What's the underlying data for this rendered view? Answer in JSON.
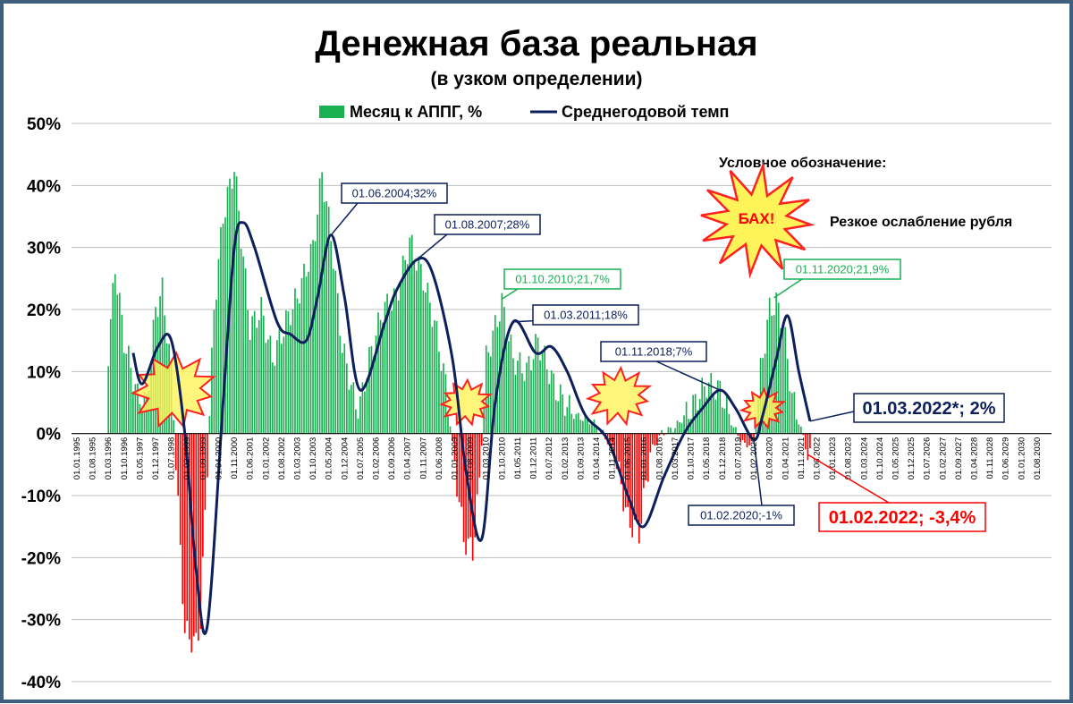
{
  "chart_data": {
    "type": "bar",
    "title": "Денежная база реальная",
    "subtitle": "(в узком определении)",
    "ylim": [
      -40,
      50
    ],
    "y_ticks": [
      "50%",
      "40%",
      "30%",
      "20%",
      "10%",
      "0%",
      "-10%",
      "-20%",
      "-30%",
      "-40%"
    ],
    "x_ticks": [
      "01.01.1995",
      "01.08.1995",
      "01.03.1996",
      "01.10.1996",
      "01.05.1997",
      "01.12.1997",
      "01.07.1998",
      "01.02.1999",
      "01.09.1999",
      "01.04.2000",
      "01.11.2000",
      "01.06.2001",
      "01.01.2002",
      "01.08.2002",
      "01.03.2003",
      "01.10.2003",
      "01.05.2004",
      "01.12.2004",
      "01.07.2005",
      "01.02.2006",
      "01.09.2006",
      "01.04.2007",
      "01.11.2007",
      "01.06.2008",
      "01.01.2009",
      "01.08.2009",
      "01.03.2010",
      "01.10.2010",
      "01.05.2011",
      "01.12.2011",
      "01.07.2012",
      "01.02.2013",
      "01.09.2013",
      "01.04.2014",
      "01.11.2014",
      "01.06.2015",
      "01.01.2016",
      "01.08.2016",
      "01.03.2017",
      "01.10.2017",
      "01.05.2018",
      "01.12.2018",
      "01.07.2019",
      "01.02.2020",
      "01.09.2020",
      "01.04.2021",
      "01.11.2021",
      "01.06.2022",
      "01.01.2023",
      "01.08.2023",
      "01.03.2024",
      "01.10.2024",
      "01.05.2025",
      "01.12.2025",
      "01.07.2026",
      "01.02.2027",
      "01.09.2027",
      "01.04.2028",
      "01.11.2028",
      "01.06.2029",
      "01.01.2030",
      "01.08.2030"
    ],
    "legend": {
      "placement": "top-center",
      "bar": "Месяц к АППГ, %",
      "line": "Среднегодовой темп"
    },
    "colors": {
      "positive": "#19b052",
      "negative": "#ff0000",
      "line": "#0d1f5c",
      "grid": "#bfbfbf",
      "burst_fill": "#fff35a",
      "burst_stroke": "#ff2020"
    },
    "bar_series": {
      "name": "Месяц к АППГ, %",
      "start": "01.03.1996",
      "keypoints": [
        [
          "01.03.1996",
          13
        ],
        [
          "01.06.1996",
          27
        ],
        [
          "01.10.1996",
          15
        ],
        [
          "01.04.1997",
          6
        ],
        [
          "01.08.1997",
          5
        ],
        [
          "01.12.1997",
          20
        ],
        [
          "01.03.1998",
          23
        ],
        [
          "01.07.1998",
          10
        ],
        [
          "01.10.1998",
          -12
        ],
        [
          "01.01.1999",
          -32
        ],
        [
          "01.06.1999",
          -34
        ],
        [
          "01.08.1999",
          -30
        ],
        [
          "01.11.1999",
          -5
        ],
        [
          "01.02.2000",
          20
        ],
        [
          "01.06.2000",
          35
        ],
        [
          "01.11.2000",
          43
        ],
        [
          "01.02.2001",
          32
        ],
        [
          "01.06.2001",
          17
        ],
        [
          "01.11.2001",
          20
        ],
        [
          "01.04.2002",
          12
        ],
        [
          "01.10.2002",
          18
        ],
        [
          "01.03.2003",
          22
        ],
        [
          "01.10.2003",
          30
        ],
        [
          "01.02.2004",
          42
        ],
        [
          "01.06.2004",
          32
        ],
        [
          "01.11.2004",
          14
        ],
        [
          "01.06.2005",
          3
        ],
        [
          "01.11.2005",
          12
        ],
        [
          "01.05.2006",
          20
        ],
        [
          "01.11.2006",
          22
        ],
        [
          "01.05.2007",
          31
        ],
        [
          "01.11.2007",
          25
        ],
        [
          "01.04.2008",
          18
        ],
        [
          "01.09.2008",
          8
        ],
        [
          "01.01.2009",
          -5
        ],
        [
          "01.05.2009",
          -17
        ],
        [
          "01.09.2009",
          -19
        ],
        [
          "01.12.2009",
          -8
        ],
        [
          "01.03.2010",
          12
        ],
        [
          "01.10.2010",
          21
        ],
        [
          "01.03.2011",
          12
        ],
        [
          "01.09.2011",
          10
        ],
        [
          "01.02.2012",
          15
        ],
        [
          "01.10.2012",
          7
        ],
        [
          "01.06.2013",
          3
        ],
        [
          "01.02.2014",
          2
        ],
        [
          "01.07.2014",
          0
        ],
        [
          "01.12.2014",
          -3
        ],
        [
          "01.06.2015",
          -14
        ],
        [
          "01.11.2015",
          -16
        ],
        [
          "01.04.2016",
          -3
        ],
        [
          "01.09.2016",
          0
        ],
        [
          "01.03.2017",
          1
        ],
        [
          "01.10.2017",
          4
        ],
        [
          "01.05.2018",
          8
        ],
        [
          "01.11.2018",
          7
        ],
        [
          "01.05.2019",
          1
        ],
        [
          "01.10.2019",
          -2
        ],
        [
          "01.02.2020",
          -1
        ],
        [
          "01.05.2020",
          10
        ],
        [
          "01.09.2020",
          20
        ],
        [
          "01.12.2020",
          21
        ],
        [
          "01.03.2021",
          18
        ],
        [
          "01.07.2021",
          6
        ],
        [
          "01.10.2021",
          2
        ],
        [
          "01.01.2022",
          -2
        ],
        [
          "01.02.2022",
          -3.4
        ],
        [
          "01.03.2022",
          -3
        ]
      ]
    },
    "line_series": {
      "name": "Среднегодовой темп",
      "points": [
        [
          "01.02.1997",
          13
        ],
        [
          "01.06.1997",
          8
        ],
        [
          "01.01.1998",
          14
        ],
        [
          "01.07.1998",
          15
        ],
        [
          "01.01.1999",
          0
        ],
        [
          "01.06.1999",
          -22
        ],
        [
          "01.11.1999",
          -31
        ],
        [
          "01.06.2000",
          5
        ],
        [
          "01.11.2000",
          30
        ],
        [
          "01.03.2001",
          34
        ],
        [
          "01.08.2001",
          30
        ],
        [
          "01.06.2002",
          18
        ],
        [
          "01.12.2002",
          16
        ],
        [
          "01.07.2003",
          15
        ],
        [
          "01.12.2003",
          22
        ],
        [
          "01.06.2004",
          32
        ],
        [
          "01.12.2004",
          22
        ],
        [
          "01.07.2005",
          7
        ],
        [
          "01.06.2006",
          18
        ],
        [
          "01.11.2006",
          23
        ],
        [
          "01.08.2007",
          28
        ],
        [
          "01.03.2008",
          26
        ],
        [
          "01.12.2008",
          12
        ],
        [
          "01.06.2009",
          -6
        ],
        [
          "01.01.2010",
          -17
        ],
        [
          "01.07.2010",
          5
        ],
        [
          "01.03.2011",
          18
        ],
        [
          "01.01.2012",
          13
        ],
        [
          "01.08.2012",
          14
        ],
        [
          "01.03.2013",
          10
        ],
        [
          "01.11.2013",
          3
        ],
        [
          "01.09.2014",
          -1
        ],
        [
          "01.06.2015",
          -10
        ],
        [
          "01.01.2016",
          -15
        ],
        [
          "01.10.2016",
          -7
        ],
        [
          "01.07.2017",
          0
        ],
        [
          "01.03.2018",
          4
        ],
        [
          "01.11.2018",
          7
        ],
        [
          "01.06.2019",
          4
        ],
        [
          "01.02.2020",
          -1
        ],
        [
          "01.06.2020",
          3
        ],
        [
          "01.12.2020",
          12
        ],
        [
          "01.05.2021",
          19
        ],
        [
          "01.10.2021",
          10
        ],
        [
          "01.03.2022",
          2
        ]
      ]
    },
    "legend_note_title": "Условное обозначение:",
    "legend_note_burst": "БАХ!",
    "legend_note_text": "Резкое ослабление рубля",
    "bursts": [
      {
        "date": "01.08.1998",
        "value": 7
      },
      {
        "date": "01.06.2009",
        "value": 5
      },
      {
        "date": "01.02.2015",
        "value": 6
      },
      {
        "date": "01.06.2020",
        "value": 4
      }
    ],
    "annotations": [
      {
        "text": "01.06.2004;32%",
        "style": "navy"
      },
      {
        "text": "01.08.2007;28%",
        "style": "navy"
      },
      {
        "text": "01.10.2010;21,7%",
        "style": "green"
      },
      {
        "text": "01.03.2011;18%",
        "style": "navy"
      },
      {
        "text": "01.11.2018;7%",
        "style": "navy"
      },
      {
        "text": "01.11.2020;21,9%",
        "style": "green"
      },
      {
        "text": "01.02.2020;-1%",
        "style": "navy"
      },
      {
        "text": "01.03.2022*; 2%",
        "style": "navy-bold"
      },
      {
        "text": "01.02.2022; -3,4%",
        "style": "red-bold"
      }
    ]
  }
}
